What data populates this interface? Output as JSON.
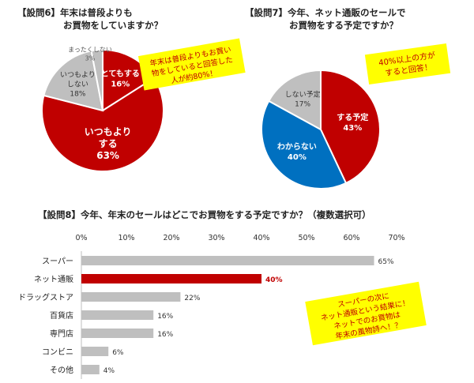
{
  "q6": {
    "title_line1": "【設問6】年末は普段よりも",
    "title_line2": "お買物をしていますか？",
    "callout_line1": "年末は普段よりもお買い",
    "callout_line2": "物をしていると回答した",
    "callout_line3": "人が約80%！"
  },
  "q7": {
    "title_line1": "【設問7】今年、ネット通販のセールで",
    "title_line2": "お買物をする予定ですか？",
    "callout_line1": "40%以上の方が",
    "callout_line2": "すると回答！"
  },
  "q8": {
    "title": "【設問8】今年、年末のセールはどこでお買物をする予定ですか？（複数選択可）",
    "callout_line1": "スーパーの次に",
    "callout_line2": "ネット通販という結果に！",
    "callout_line3": "ネットでのお買物は",
    "callout_line4": "年末の風物詩へ！？"
  },
  "colors": {
    "red": "#c00000",
    "blue": "#0070c0",
    "gray": "#bfbfbf",
    "callout_bg": "#ffff00",
    "callout_text": "#c00000"
  },
  "chart_data": [
    {
      "type": "pie",
      "title": "【設問6】年末は普段よりもお買物をしていますか？",
      "slices": [
        {
          "label_lines": [
            "とてもする"
          ],
          "value": 16,
          "value_label": "16%",
          "color": "#c00000"
        },
        {
          "label_lines": [
            "いつもより",
            "する"
          ],
          "value": 63,
          "value_label": "63%",
          "color": "#c00000"
        },
        {
          "label_lines": [
            "いつもより",
            "しない"
          ],
          "value": 18,
          "value_label": "18%",
          "color": "#bfbfbf"
        },
        {
          "label_lines": [
            "まったくしない"
          ],
          "value": 3,
          "value_label": "3%",
          "color": "#bfbfbf"
        }
      ]
    },
    {
      "type": "pie",
      "title": "【設問7】今年、ネット通販のセールでお買物をする予定ですか？",
      "slices": [
        {
          "label_lines": [
            "する予定"
          ],
          "value": 43,
          "value_label": "43%",
          "color": "#c00000"
        },
        {
          "label_lines": [
            "わからない"
          ],
          "value": 40,
          "value_label": "40%",
          "color": "#0070c0"
        },
        {
          "label_lines": [
            "しない予定"
          ],
          "value": 17,
          "value_label": "17%",
          "color": "#bfbfbf"
        }
      ]
    },
    {
      "type": "bar",
      "orientation": "horizontal",
      "title": "【設問8】今年、年末のセールはどこでお買物をする予定ですか？（複数選択可）",
      "categories": [
        "スーパー",
        "ネット通販",
        "ドラッグストア",
        "百貨店",
        "専門店",
        "コンビニ",
        "その他"
      ],
      "values": [
        65,
        40,
        22,
        16,
        16,
        6,
        4
      ],
      "value_labels": [
        "65%",
        "40%",
        "22%",
        "16%",
        "16%",
        "6%",
        "4%"
      ],
      "highlight_index": 1,
      "xlim": [
        0,
        70
      ],
      "ticks": [
        0,
        10,
        20,
        30,
        40,
        50,
        60,
        70
      ],
      "tick_labels": [
        "0%",
        "10%",
        "20%",
        "30%",
        "40%",
        "50%",
        "60%",
        "70%"
      ],
      "grid": false
    }
  ]
}
